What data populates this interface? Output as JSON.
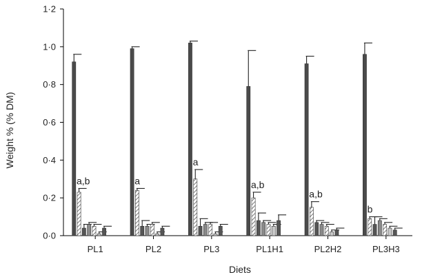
{
  "chart_data": {
    "type": "bar",
    "xlabel": "Diets",
    "ylabel": "Weight % (% DM)",
    "ylim": [
      0,
      1.2
    ],
    "yticks": [
      "0·0",
      "0·2",
      "0·4",
      "0·6",
      "0·8",
      "1·0",
      "1·2"
    ],
    "categories": [
      "PL1",
      "PL2",
      "PL3",
      "PL1H1",
      "PL2H2",
      "PL3H3"
    ],
    "series": [
      {
        "values": [
          0.92,
          0.99,
          1.02,
          0.79,
          0.91,
          0.96
        ],
        "errors": [
          0.04,
          0.01,
          0.01,
          0.19,
          0.04,
          0.06
        ],
        "pattern": "solid"
      },
      {
        "values": [
          0.23,
          0.24,
          0.3,
          0.2,
          0.15,
          0.09
        ],
        "errors": [
          0.02,
          0.01,
          0.05,
          0.03,
          0.03,
          0.01
        ],
        "pattern": "hatch"
      },
      {
        "values": [
          0.04,
          0.05,
          0.05,
          0.08,
          0.07,
          0.06
        ],
        "errors": [
          0.02,
          0.03,
          0.04,
          0.04,
          0.01,
          0.04
        ],
        "pattern": "dark"
      },
      {
        "values": [
          0.06,
          0.05,
          0.06,
          0.07,
          0.06,
          0.08
        ],
        "errors": [
          0.01,
          0.01,
          0.01,
          0.01,
          0.01,
          0.01
        ],
        "pattern": "gray"
      },
      {
        "values": [
          0.05,
          0.06,
          0.06,
          0.06,
          0.05,
          0.06
        ],
        "errors": [
          0.01,
          0.01,
          0.01,
          0.01,
          0.01,
          0.01
        ],
        "pattern": "hatch"
      },
      {
        "values": [
          0.01,
          0.01,
          0.01,
          0.05,
          0.02,
          0.04
        ],
        "errors": [
          0.01,
          0.01,
          0.01,
          0.01,
          0.01,
          0.01
        ],
        "pattern": "light"
      },
      {
        "values": [
          0.04,
          0.04,
          0.05,
          0.08,
          0.03,
          0.03
        ],
        "errors": [
          0.01,
          0.01,
          0.01,
          0.03,
          0.01,
          0.01
        ],
        "pattern": "dark"
      }
    ],
    "annotations": [
      {
        "category": 0,
        "series": 1,
        "text": "a,b"
      },
      {
        "category": 1,
        "series": 1,
        "text": "a"
      },
      {
        "category": 2,
        "series": 1,
        "text": "a"
      },
      {
        "category": 3,
        "series": 1,
        "text": "a,b"
      },
      {
        "category": 4,
        "series": 1,
        "text": "a,b"
      },
      {
        "category": 5,
        "series": 1,
        "text": "b"
      }
    ],
    "grid": false,
    "legend": "none",
    "colors": {
      "solid": "#4a4a4a",
      "dark": "#555555",
      "gray": "#8a8a8a",
      "light": "#c8c8c8",
      "hatch_line": "#555555"
    }
  }
}
